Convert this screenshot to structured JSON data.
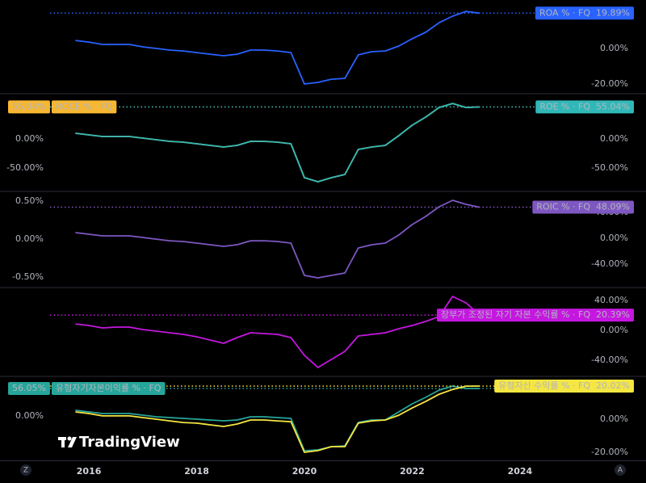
{
  "x": [
    2015.75,
    2016,
    2016.25,
    2016.5,
    2016.75,
    2017,
    2017.25,
    2017.5,
    2017.75,
    2018,
    2018.25,
    2018.5,
    2018.75,
    2019,
    2019.25,
    2019.5,
    2019.75,
    2020,
    2020.25,
    2020.5,
    2020.75,
    2021,
    2021.25,
    2021.5,
    2021.75,
    2022,
    2022.25,
    2022.5,
    2022.75,
    2023,
    2023.25
  ],
  "xlim": [
    2014.35,
    2025.44
  ],
  "xticks": [
    2016,
    2018,
    2020,
    2022,
    2024
  ],
  "corner_labels": [
    "Z",
    "A"
  ],
  "watermark": "TradingView",
  "chart_data": [
    {
      "type": "line",
      "ylim": [
        -25,
        27.3
      ],
      "yticks": [
        {
          "value": 0,
          "label": "0.00%"
        },
        {
          "value": -20,
          "label": "-20.00%"
        }
      ],
      "series": [
        {
          "name": "ROA % · FQ",
          "color": "#2962ff",
          "text_color": "#ffffff",
          "label_side": "right",
          "last_label": "19.89%",
          "values": [
            4.5,
            3.6,
            2.3,
            2.3,
            2.3,
            0.9,
            0,
            -0.9,
            -1.4,
            -2.3,
            -3.2,
            -4.1,
            -3.2,
            -0.9,
            -0.9,
            -1.4,
            -2.3,
            -20,
            -19.1,
            -17.3,
            -16.8,
            -3.6,
            -1.8,
            -1.4,
            1.4,
            5.5,
            9.1,
            14.5,
            18.2,
            20.9,
            19.89
          ]
        }
      ]
    },
    {
      "type": "line",
      "ylim": [
        -88.9,
        76.4
      ],
      "y2lim": [
        -88.9,
        76.4
      ],
      "yticks": [
        {
          "value": 0,
          "label": "0.00%"
        },
        {
          "value": -50,
          "label": "-50.00%"
        }
      ],
      "y2ticks": [
        {
          "value": 0,
          "label": "0.00%"
        },
        {
          "value": -50,
          "label": "-50.00%"
        }
      ],
      "series": [
        {
          "name": "ROCE % · FQ",
          "color": "#f7b731",
          "text_color": "#000000",
          "label_side": "left",
          "axis": "y2",
          "last_label": "55.04%",
          "values": [
            9.7,
            6.9,
            4.2,
            4.2,
            4.2,
            1.4,
            -1.4,
            -4.2,
            -5.6,
            -8.3,
            -11.1,
            -13.9,
            -11.1,
            -4.2,
            -4.2,
            -5.6,
            -8.3,
            -66.7,
            -73.6,
            -66.7,
            -61.1,
            -18,
            -13.9,
            -11.1,
            5.6,
            23.6,
            37.5,
            54,
            61,
            54,
            55.04
          ]
        },
        {
          "name": "ROE % · FQ",
          "color": "#30b8b8",
          "text_color": "#000000",
          "label_side": "right",
          "last_label": "55.04%",
          "values": [
            9.7,
            6.9,
            4.2,
            4.2,
            4.2,
            1.4,
            -1.4,
            -4.2,
            -5.6,
            -8.3,
            -11.1,
            -13.9,
            -11.1,
            -4.2,
            -4.2,
            -5.6,
            -8.3,
            -66.7,
            -73.6,
            -66.7,
            -61.1,
            -18,
            -13.9,
            -11.1,
            5.6,
            23.6,
            37.5,
            54,
            61,
            54,
            55.04
          ]
        }
      ]
    },
    {
      "type": "line",
      "ylim": [
        -75,
        71.3
      ],
      "y2lim": [
        -0.628,
        0.617
      ],
      "yticks": [
        {
          "value": 40,
          "label": "40.00%"
        },
        {
          "value": 0,
          "label": "0.00%"
        },
        {
          "value": -40,
          "label": "-40.00%"
        }
      ],
      "y2ticks": [
        {
          "value": 0.5,
          "label": "0.50%"
        },
        {
          "value": 0,
          "label": "0.00%"
        },
        {
          "value": -0.5,
          "label": "-0.50%"
        }
      ],
      "series": [
        {
          "name": "ROIC % · FQ",
          "color": "#7e57c2",
          "text_color": "#ffffff",
          "label_side": "right",
          "last_label": "48.09%",
          "values": [
            8.8,
            6.3,
            3.8,
            3.8,
            3.8,
            1.3,
            -1.3,
            -3.8,
            -5,
            -7.5,
            -10,
            -12.5,
            -10,
            -3.8,
            -3.8,
            -5,
            -7.5,
            -57.5,
            -61.3,
            -57.5,
            -53.8,
            -15,
            -10,
            -7.5,
            5,
            21.3,
            33.8,
            48.8,
            58.8,
            52.5,
            48.09
          ]
        }
      ]
    },
    {
      "type": "line",
      "ylim": [
        -60.5,
        56.2
      ],
      "yticks": [
        {
          "value": 40,
          "label": "40.00%"
        },
        {
          "value": 0,
          "label": "0.00%"
        },
        {
          "value": -40,
          "label": "-40.00%"
        }
      ],
      "series": [
        {
          "name": "장부가 조정된 자기 자본 수익률 % · FQ",
          "color": "#c517e0",
          "text_color": "#ffffff",
          "label_side": "right",
          "last_label": "20.39%",
          "values": [
            8.6,
            6.5,
            3.2,
            4.3,
            4.3,
            1.1,
            -1.1,
            -3.2,
            -5.4,
            -8.6,
            -13,
            -17.3,
            -9.7,
            -3.2,
            -4.3,
            -5.4,
            -9.7,
            -33.5,
            -49.7,
            -38.9,
            -28.1,
            -7.6,
            -5.4,
            -3.2,
            2.2,
            6.5,
            11.9,
            18.4,
            45.4,
            36.8,
            20.39
          ]
        }
      ]
    },
    {
      "type": "line",
      "ylim": [
        -24.9,
        25.4
      ],
      "y2lim": [
        -90.6,
        79.1
      ],
      "yticks": [
        {
          "value": 0,
          "label": "0.00%"
        },
        {
          "value": -20,
          "label": "-20.00%"
        }
      ],
      "y2ticks": [
        {
          "value": 0,
          "label": "0.00%"
        }
      ],
      "series": [
        {
          "name": "유형자기자본이익률 % · FQ",
          "color": "#26a69a",
          "text_color": "#ffffff",
          "label_side": "left",
          "axis": "y2",
          "last_label": "56.05%",
          "values": [
            11.5,
            8.2,
            4.9,
            4.9,
            4.9,
            1.6,
            -1.6,
            -3.3,
            -4.9,
            -6.6,
            -8.2,
            -9.9,
            -8.2,
            -1.6,
            -1.6,
            -3.3,
            -4.9,
            -70.8,
            -69.2,
            -62.6,
            -61,
            -13.2,
            -8.2,
            -8.2,
            8.2,
            24.7,
            37.9,
            52.7,
            61,
            56,
            56.05
          ]
        },
        {
          "name": "유형자산 수익률 % · FQ",
          "color": "#f5e642",
          "text_color": "#000000",
          "label_side": "right",
          "last_label": "20.02%",
          "values": [
            4.4,
            3.4,
            2,
            2,
            2,
            1,
            0,
            -1,
            -2,
            -2.4,
            -3.4,
            -4.4,
            -2.9,
            -0.5,
            -0.5,
            -1,
            -1.5,
            -20,
            -19,
            -16.6,
            -16.6,
            -2.4,
            -1,
            -0.5,
            2.4,
            6.8,
            10.7,
            15.1,
            18,
            20,
            20.02
          ]
        }
      ]
    }
  ]
}
